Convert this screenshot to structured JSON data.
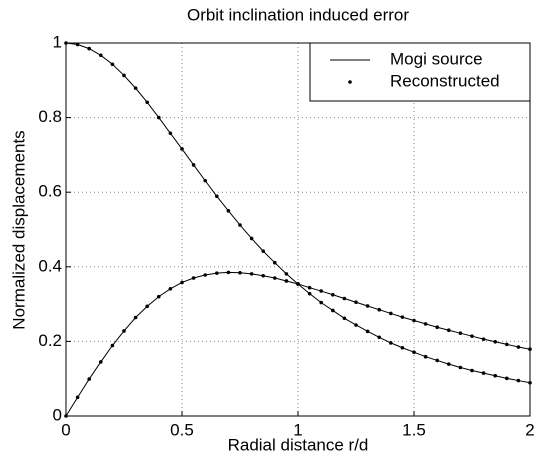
{
  "chart_data": {
    "type": "line",
    "title": "Orbit inclination induced error",
    "x_label": "Radial distance r/d",
    "y_label": "Normalized displacements",
    "x": [
      0,
      0.05,
      0.1,
      0.15,
      0.2,
      0.25,
      0.3,
      0.35,
      0.4,
      0.45,
      0.5,
      0.55,
      0.6,
      0.65,
      0.7,
      0.75,
      0.8,
      0.85,
      0.9,
      0.95,
      1,
      1.05,
      1.1,
      1.15,
      1.2,
      1.25,
      1.3,
      1.35,
      1.4,
      1.45,
      1.5,
      1.55,
      1.6,
      1.65,
      1.7,
      1.75,
      1.8,
      1.85,
      1.9,
      1.95,
      2
    ],
    "series": [
      {
        "name": "Mogi source",
        "style": "line",
        "color": "#000000",
        "values": [
          1.0,
          0.996,
          0.985,
          0.967,
          0.943,
          0.913,
          0.879,
          0.841,
          0.8,
          0.758,
          0.716,
          0.673,
          0.631,
          0.589,
          0.55,
          0.512,
          0.476,
          0.442,
          0.411,
          0.381,
          0.354,
          0.328,
          0.304,
          0.283,
          0.262,
          0.244,
          0.227,
          0.211,
          0.196,
          0.183,
          0.171,
          0.159,
          0.149,
          0.139,
          0.13,
          0.122,
          0.115,
          0.108,
          0.101,
          0.095,
          0.089
        ]
      },
      {
        "style": "line",
        "color": "#000000",
        "values": [
          0,
          0.05,
          0.099,
          0.145,
          0.189,
          0.228,
          0.264,
          0.294,
          0.32,
          0.341,
          0.358,
          0.37,
          0.378,
          0.383,
          0.385,
          0.384,
          0.381,
          0.376,
          0.37,
          0.362,
          0.354,
          0.344,
          0.335,
          0.325,
          0.315,
          0.305,
          0.295,
          0.285,
          0.275,
          0.265,
          0.256,
          0.247,
          0.238,
          0.23,
          0.222,
          0.214,
          0.206,
          0.199,
          0.192,
          0.185,
          0.179
        ]
      },
      {
        "name": "Reconstructed",
        "style": "dots",
        "color": "#000000",
        "values": [
          1.0,
          0.996,
          0.985,
          0.967,
          0.943,
          0.913,
          0.879,
          0.841,
          0.8,
          0.758,
          0.716,
          0.673,
          0.631,
          0.589,
          0.55,
          0.512,
          0.476,
          0.442,
          0.411,
          0.381,
          0.354,
          0.328,
          0.304,
          0.283,
          0.262,
          0.244,
          0.227,
          0.211,
          0.196,
          0.183,
          0.171,
          0.159,
          0.149,
          0.139,
          0.13,
          0.122,
          0.115,
          0.108,
          0.101,
          0.095,
          0.089
        ]
      },
      {
        "style": "dots",
        "color": "#000000",
        "values": [
          0,
          0.05,
          0.099,
          0.145,
          0.189,
          0.228,
          0.264,
          0.294,
          0.32,
          0.341,
          0.358,
          0.37,
          0.378,
          0.383,
          0.385,
          0.384,
          0.381,
          0.376,
          0.37,
          0.362,
          0.354,
          0.344,
          0.335,
          0.325,
          0.315,
          0.305,
          0.295,
          0.285,
          0.275,
          0.265,
          0.256,
          0.247,
          0.238,
          0.23,
          0.222,
          0.214,
          0.206,
          0.199,
          0.192,
          0.185,
          0.179
        ]
      }
    ],
    "xlim": [
      0,
      2
    ],
    "xticks": [
      0,
      0.5,
      1,
      1.5,
      2
    ],
    "ylim": [
      0,
      1
    ],
    "yticks": [
      0,
      0.2,
      0.4,
      0.6,
      0.8,
      1
    ],
    "grid": true,
    "legend": "upper right"
  }
}
